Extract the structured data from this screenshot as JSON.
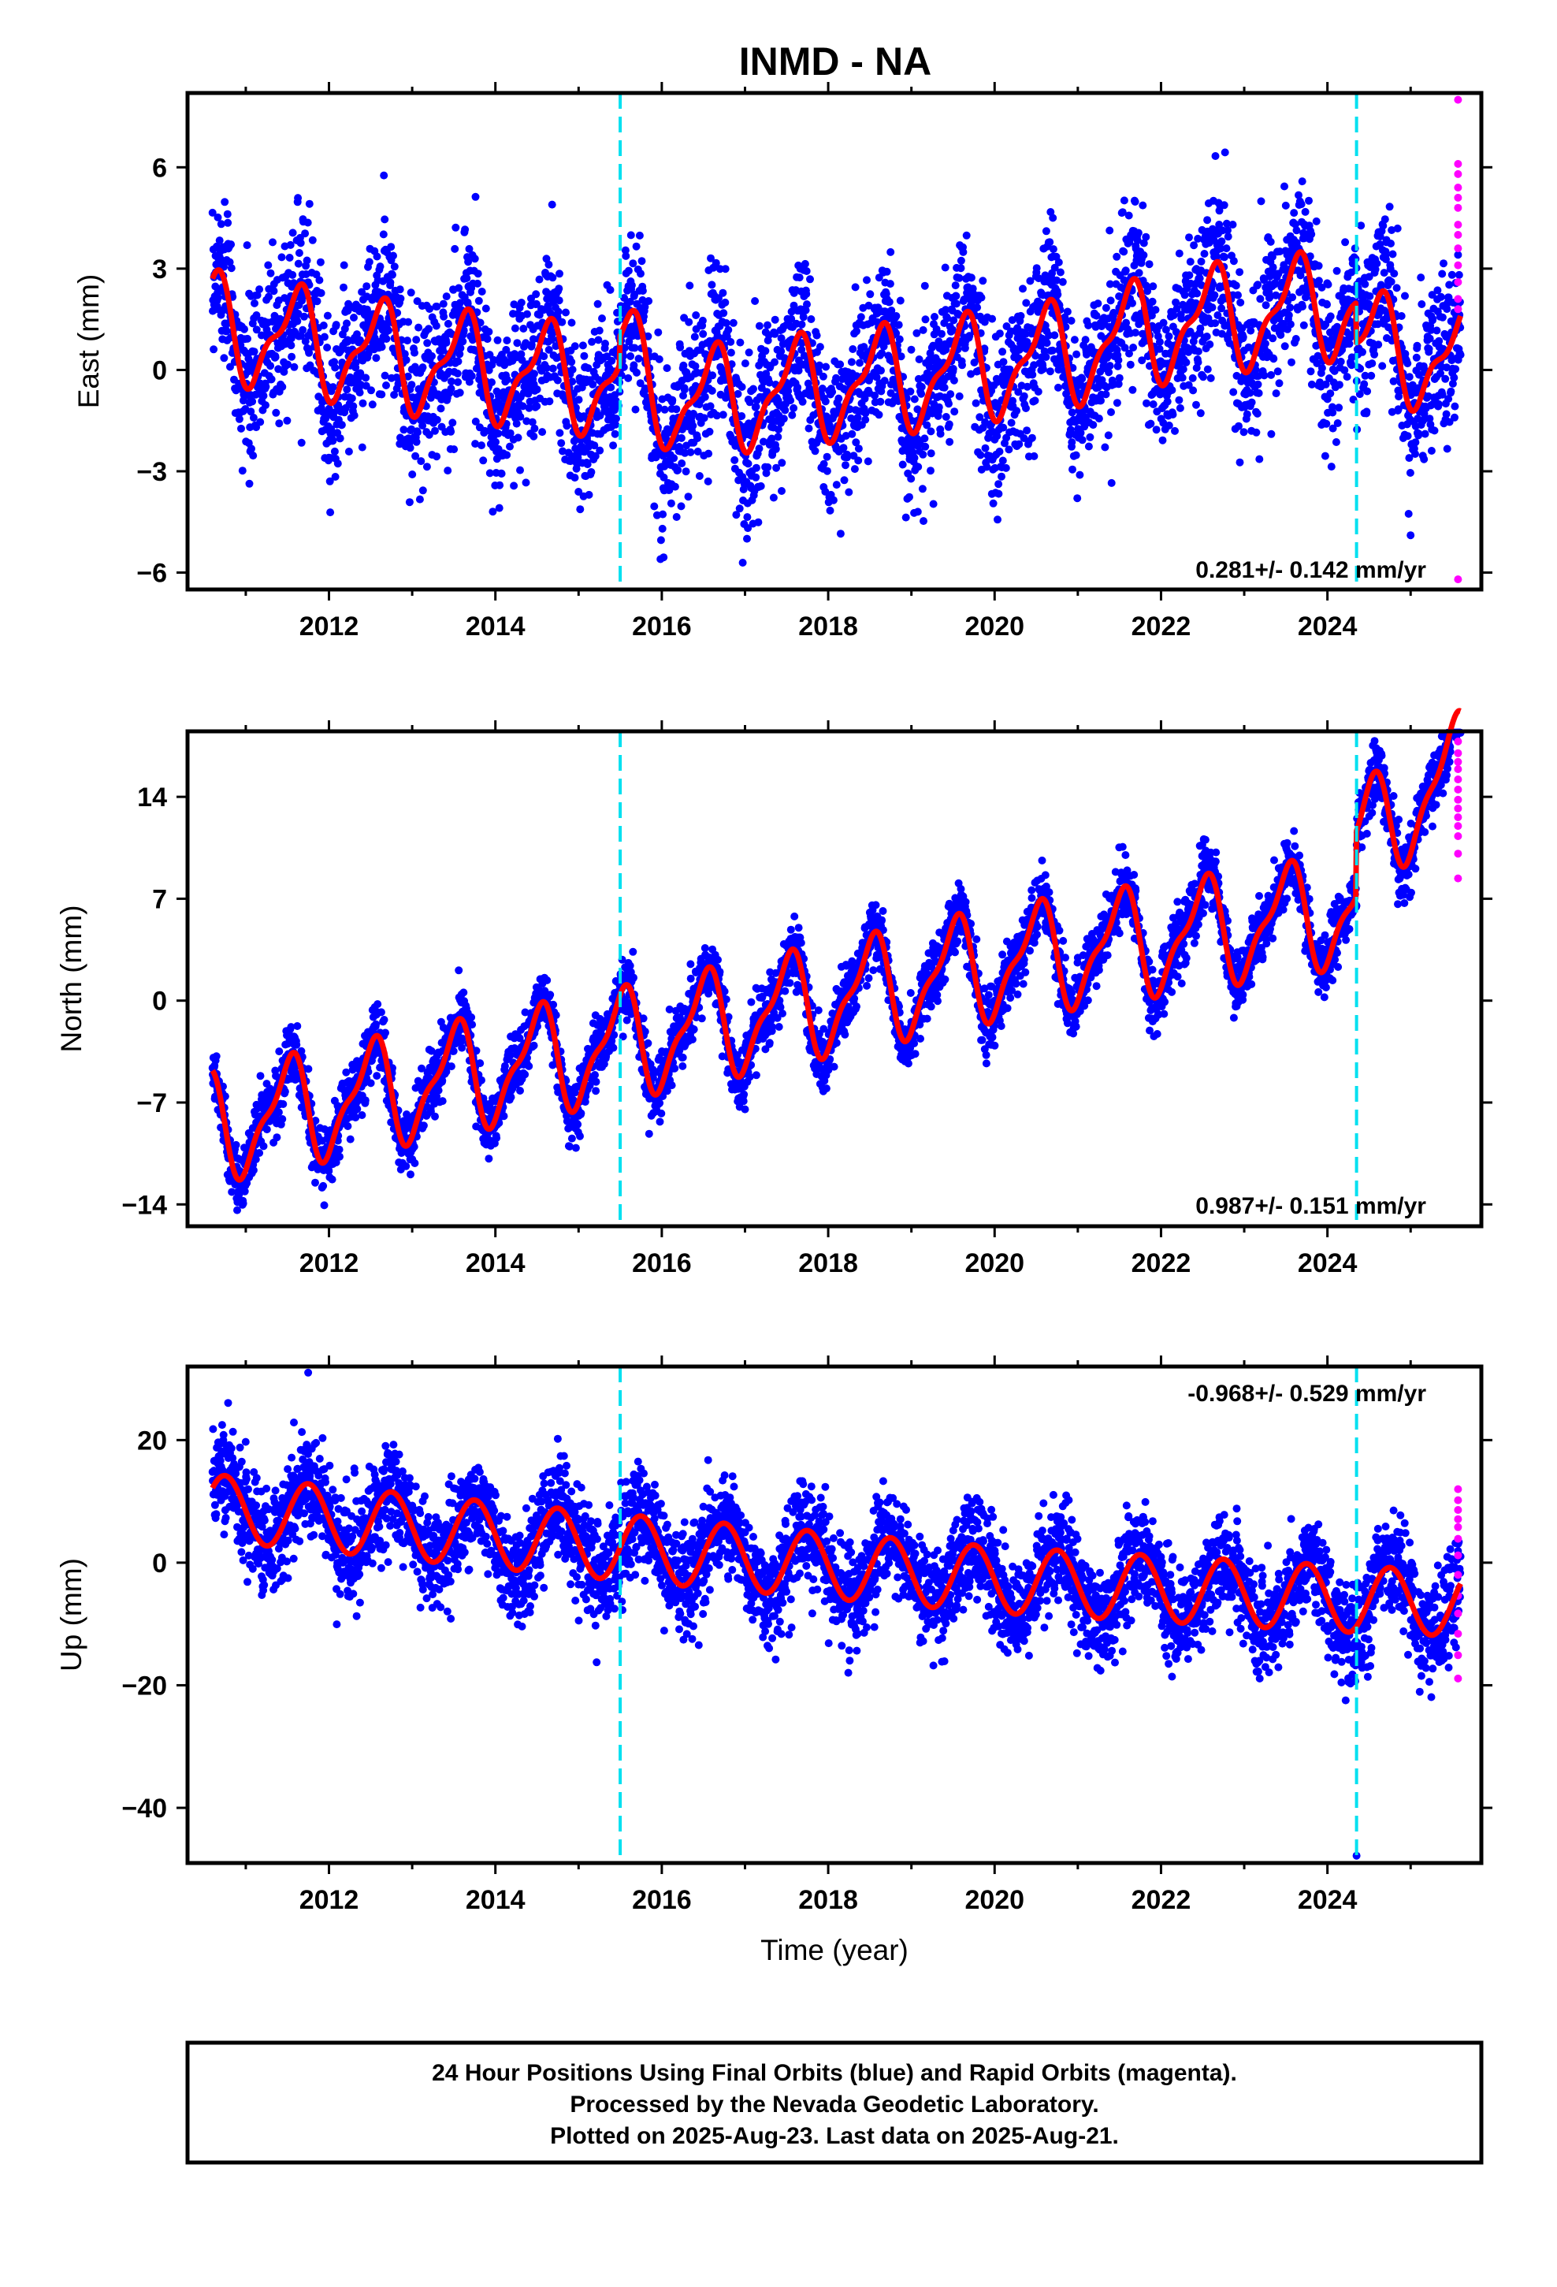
{
  "title": "INMD - NA",
  "xlabel": "Time (year)",
  "colors": {
    "final_orbits": "#0000ff",
    "rapid_orbits": "#ff00ff",
    "model_fit": "#ff0000",
    "equipment_change": "#00e0f0",
    "frame": "#000000"
  },
  "footer": {
    "line1": "24 Hour Positions Using Final Orbits (blue) and Rapid Orbits (magenta).",
    "line2": "Processed by the Nevada Geodetic Laboratory.",
    "line3": "Plotted on 2025-Aug-23. Last data on 2025-Aug-21."
  },
  "chart_data": [
    {
      "type": "scatter",
      "component": "east",
      "ylabel": "East (mm)",
      "rate_label": "0.281+/- 0.142 mm/yr",
      "xlim": [
        2010.3,
        2025.85
      ],
      "ylim": [
        -6.5,
        8.2
      ],
      "xticks": [
        2012,
        2014,
        2016,
        2018,
        2020,
        2022,
        2024
      ],
      "yticks": [
        -6,
        -3,
        0,
        3,
        6
      ],
      "yticklabels": [
        "−6",
        "−3",
        "0",
        "3",
        "6"
      ],
      "vlines": [
        2015.5,
        2024.35
      ],
      "model": {
        "start": 2010.6,
        "end": 2025.6,
        "knots": [
          [
            2010.6,
            1.3
          ],
          [
            2013.0,
            0.3
          ],
          [
            2015.5,
            -0.4
          ],
          [
            2016.2,
            -1.8
          ],
          [
            2019.0,
            -1.0
          ],
          [
            2020.7,
            -0.4
          ],
          [
            2022.3,
            0.6
          ],
          [
            2024.35,
            1.2
          ],
          [
            2025.6,
            0.6
          ]
        ],
        "steps": [
          [
            2015.5,
            0.8
          ],
          [
            2024.35,
            -1.2
          ]
        ],
        "annual_amp": 1.4,
        "annual_phase": 2011.35,
        "semi_amp": 0.55,
        "semi_phase": 2011.1
      },
      "noise_sd": 1.2,
      "final_points": 4400,
      "rapid_x": 2025.57,
      "rapid_y": [
        8.0,
        6.1,
        5.8,
        5.4,
        5.1,
        4.8,
        4.3,
        4.0,
        3.6,
        3.1,
        2.6,
        2.1,
        1.8,
        -6.2
      ]
    },
    {
      "type": "scatter",
      "component": "north",
      "ylabel": "North (mm)",
      "rate_label": "0.987+/- 0.151 mm/yr",
      "xlim": [
        2010.3,
        2025.85
      ],
      "ylim": [
        -15.5,
        18.5
      ],
      "xticks": [
        2012,
        2014,
        2016,
        2018,
        2020,
        2022,
        2024
      ],
      "yticks": [
        -14,
        -7,
        0,
        7,
        14
      ],
      "yticklabels": [
        "−14",
        "−7",
        "0",
        "7",
        "14"
      ],
      "vlines": [
        2015.5,
        2024.35
      ],
      "model": {
        "start": 2010.6,
        "end": 2025.6,
        "knots": [
          [
            2010.6,
            -8.7
          ],
          [
            2015.5,
            -3.0
          ],
          [
            2020.0,
            2.5
          ],
          [
            2024.35,
            6.3
          ],
          [
            2025.6,
            11.5
          ]
        ],
        "steps": [
          [
            2024.35,
            4.5
          ]
        ],
        "annual_amp": 3.4,
        "annual_phase": 2011.25,
        "semi_amp": 1.2,
        "semi_phase": 2011.0
      },
      "noise_sd": 1.1,
      "final_points": 4400,
      "rapid_x": 2025.57,
      "rapid_y": [
        17.8,
        17.0,
        16.4,
        15.9,
        15.2,
        14.5,
        13.8,
        13.2,
        12.6,
        12.0,
        11.3,
        10.1,
        8.4
      ]
    },
    {
      "type": "scatter",
      "component": "up",
      "ylabel": "Up (mm)",
      "rate_label": "-0.968+/- 0.529 mm/yr",
      "xlim": [
        2010.3,
        2025.85
      ],
      "ylim": [
        -49,
        32
      ],
      "xticks": [
        2012,
        2014,
        2016,
        2018,
        2020,
        2022,
        2024
      ],
      "yticks": [
        -40,
        -20,
        0,
        20
      ],
      "yticklabels": [
        "−40",
        "−20",
        "0",
        "20"
      ],
      "vlines": [
        2015.5,
        2024.35
      ],
      "model": {
        "start": 2010.6,
        "end": 2025.6,
        "knots": [
          [
            2010.6,
            9.0
          ],
          [
            2015.5,
            2.5
          ],
          [
            2020.0,
            -2.8
          ],
          [
            2024.35,
            -6.0
          ],
          [
            2025.6,
            -6.6
          ]
        ],
        "steps": [],
        "annual_amp": 5.4,
        "annual_phase": 2010.5,
        "semi_amp": 0.0,
        "semi_phase": 2011.0
      },
      "noise_sd": 4.2,
      "final_points": 4400,
      "rapid_x": 2025.57,
      "rapid_y": [
        12.0,
        10.2,
        8.6,
        7.1,
        5.8,
        3.9,
        1.2,
        -2.0,
        -5.4,
        -8.3,
        -11.6,
        -15.1,
        -18.9
      ],
      "outliers": [
        [
          2011.75,
          31.0
        ],
        [
          2024.35,
          -47.8
        ]
      ]
    }
  ]
}
